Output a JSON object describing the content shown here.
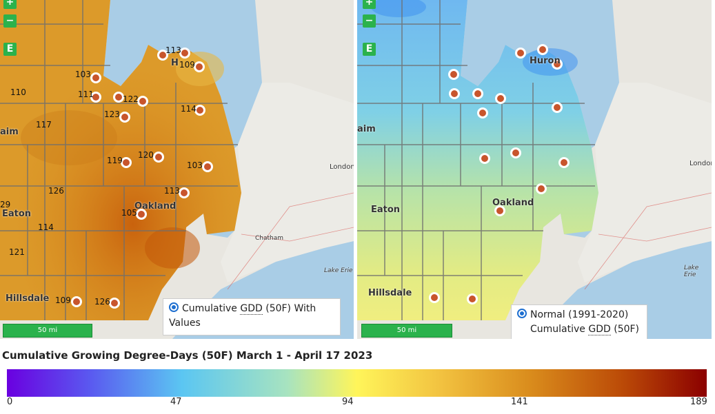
{
  "left_map": {
    "legend_label": "Cumulative GDD (50F) With Values",
    "legend_part1": "Cumulative ",
    "legend_abbr": "GDD",
    "legend_part2": " (50F) With",
    "legend_part3": "Values",
    "scale_label": "50 mi",
    "zoom_in": "+",
    "zoom_out": "−",
    "extent_btn": "E",
    "county_values": [
      "113",
      "109",
      "103",
      "111",
      "122",
      "123",
      "114",
      "110",
      "117",
      "119",
      "120",
      "103",
      "126",
      "113",
      "29",
      "105",
      "114",
      "121",
      "109",
      "126"
    ],
    "city_labels": [
      "H",
      "Eaton",
      "Oakland",
      "Hillsdale",
      "London",
      "Chatham",
      "Lake Erie",
      "aim"
    ]
  },
  "right_map": {
    "legend_line1": "Normal (1991-2020)",
    "legend_part1": "Cumulative ",
    "legend_abbr": "GDD",
    "legend_part2": " (50F)",
    "scale_label": "50 mi",
    "zoom_in": "+",
    "zoom_out": "−",
    "extent_btn": "E",
    "city_labels": [
      "Huron",
      "Eaton",
      "Oakland",
      "Hillsdale",
      "London",
      "aim",
      "Lake Erie"
    ]
  },
  "colorbar": {
    "title": "Cumulative Growing Degree-Days (50F) March 1 - April 17 2023",
    "ticks": [
      "0",
      "47",
      "94",
      "141",
      "189"
    ],
    "min": 0,
    "max": 189,
    "colors": [
      "#6a00e0",
      "#5bc6f2",
      "#fff55a",
      "#d98b1c",
      "#8b0000"
    ]
  }
}
